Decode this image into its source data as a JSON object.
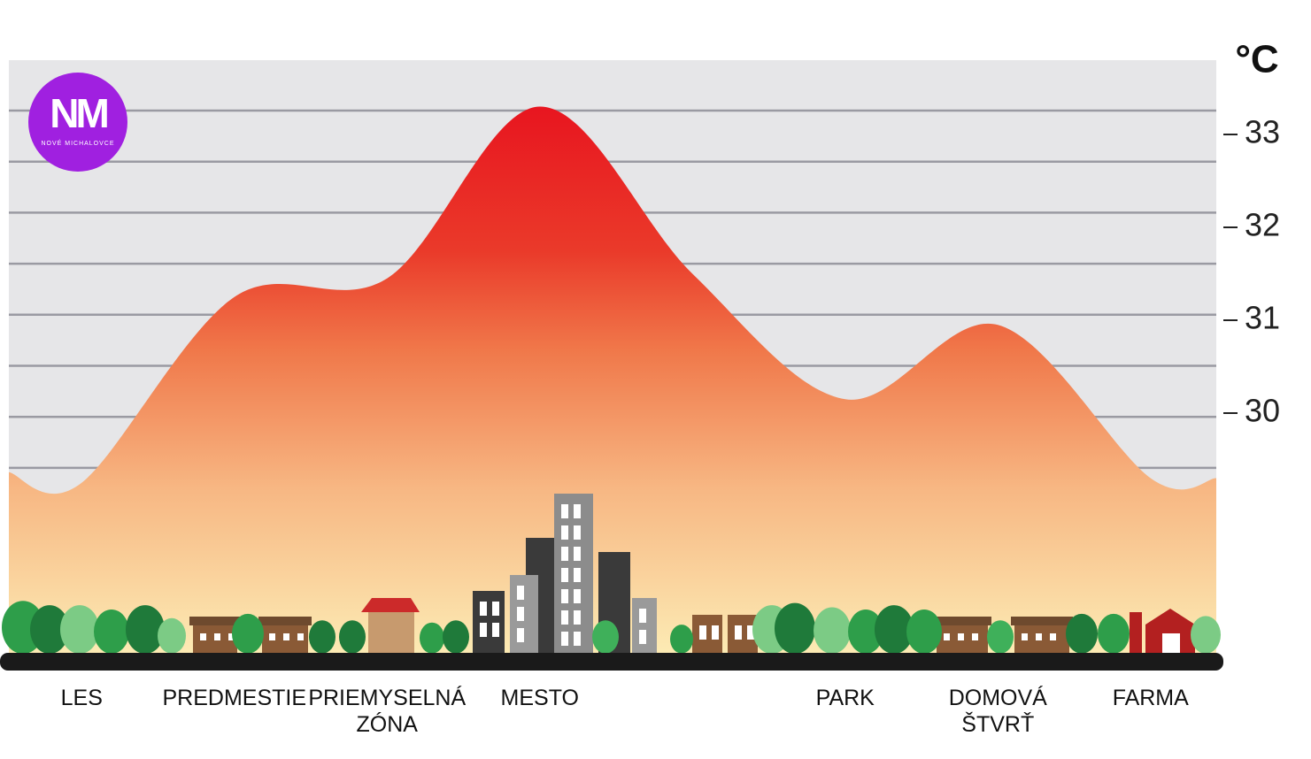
{
  "chart_data": {
    "type": "area",
    "categories": [
      "LES",
      "PREDMESTIE",
      "PRIEMYSELNÁ ZÓNA",
      "MESTO",
      null,
      "PARK",
      "DOMOVÁ ŠTVRŤ",
      "FARMA"
    ],
    "values": [
      29.25,
      31.25,
      31.45,
      33.3,
      31.5,
      30.15,
      30.95,
      29.3
    ],
    "ylim": [
      27.4,
      33.8
    ],
    "yticks": [
      30,
      31,
      32,
      33
    ],
    "y_label": "°C",
    "logo": {
      "mark": "NM",
      "text": "NOVÉ MICHALOVCE"
    }
  }
}
